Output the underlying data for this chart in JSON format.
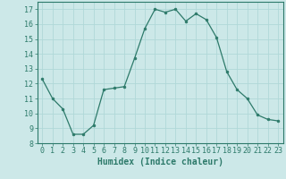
{
  "x": [
    0,
    1,
    2,
    3,
    4,
    5,
    6,
    7,
    8,
    9,
    10,
    11,
    12,
    13,
    14,
    15,
    16,
    17,
    18,
    19,
    20,
    21,
    22,
    23
  ],
  "y": [
    12.3,
    11.0,
    10.3,
    8.6,
    8.6,
    9.2,
    11.6,
    11.7,
    11.8,
    13.7,
    15.7,
    17.0,
    16.8,
    17.0,
    16.2,
    16.7,
    16.3,
    15.1,
    12.8,
    11.6,
    11.0,
    9.9,
    9.6,
    9.5
  ],
  "xlabel": "Humidex (Indice chaleur)",
  "xlim": [
    -0.5,
    23.5
  ],
  "ylim": [
    8,
    17.5
  ],
  "yticks": [
    8,
    9,
    10,
    11,
    12,
    13,
    14,
    15,
    16,
    17
  ],
  "xticks": [
    0,
    1,
    2,
    3,
    4,
    5,
    6,
    7,
    8,
    9,
    10,
    11,
    12,
    13,
    14,
    15,
    16,
    17,
    18,
    19,
    20,
    21,
    22,
    23
  ],
  "line_color": "#2d7a6a",
  "marker": "o",
  "markersize": 2.0,
  "linewidth": 0.9,
  "bg_color": "#cce8e8",
  "grid_color": "#b0d8d8",
  "font_color": "#2d7a6a",
  "tick_fontsize": 6.0,
  "xlabel_fontsize": 7.0
}
